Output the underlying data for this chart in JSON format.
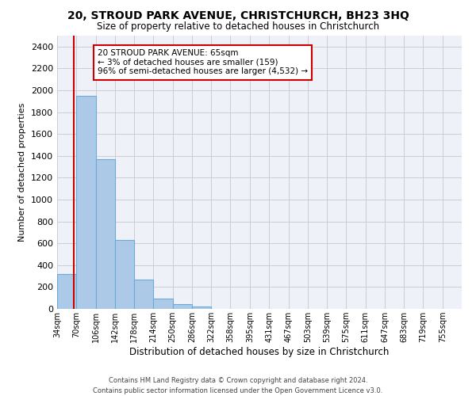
{
  "title": "20, STROUD PARK AVENUE, CHRISTCHURCH, BH23 3HQ",
  "subtitle": "Size of property relative to detached houses in Christchurch",
  "xlabel": "Distribution of detached houses by size in Christchurch",
  "ylabel": "Number of detached properties",
  "bar_color": "#adc9e8",
  "bar_edge_color": "#6aaad4",
  "bin_labels": [
    "34sqm",
    "70sqm",
    "106sqm",
    "142sqm",
    "178sqm",
    "214sqm",
    "250sqm",
    "286sqm",
    "322sqm",
    "358sqm",
    "395sqm",
    "431sqm",
    "467sqm",
    "503sqm",
    "539sqm",
    "575sqm",
    "611sqm",
    "647sqm",
    "683sqm",
    "719sqm",
    "755sqm"
  ],
  "bar_heights": [
    320,
    1950,
    1370,
    630,
    270,
    95,
    40,
    20,
    0,
    0,
    0,
    0,
    0,
    0,
    0,
    0,
    0,
    0,
    0,
    0
  ],
  "ylim": [
    0,
    2500
  ],
  "yticks": [
    0,
    200,
    400,
    600,
    800,
    1000,
    1200,
    1400,
    1600,
    1800,
    2000,
    2200,
    2400
  ],
  "property_line_x": 65,
  "bin_edges": [
    34,
    70,
    106,
    142,
    178,
    214,
    250,
    286,
    322,
    358,
    395,
    431,
    467,
    503,
    539,
    575,
    611,
    647,
    683,
    719,
    755
  ],
  "annotation_text_line1": "20 STROUD PARK AVENUE: 65sqm",
  "annotation_text_line2": "← 3% of detached houses are smaller (159)",
  "annotation_text_line3": "96% of semi-detached houses are larger (4,532) →",
  "red_line_color": "#cc0000",
  "annotation_box_color": "#ffffff",
  "annotation_box_edge_color": "#cc0000",
  "footer_line1": "Contains HM Land Registry data © Crown copyright and database right 2024.",
  "footer_line2": "Contains public sector information licensed under the Open Government Licence v3.0.",
  "background_color": "#eef2f8",
  "grid_color": "#c8c8c8"
}
